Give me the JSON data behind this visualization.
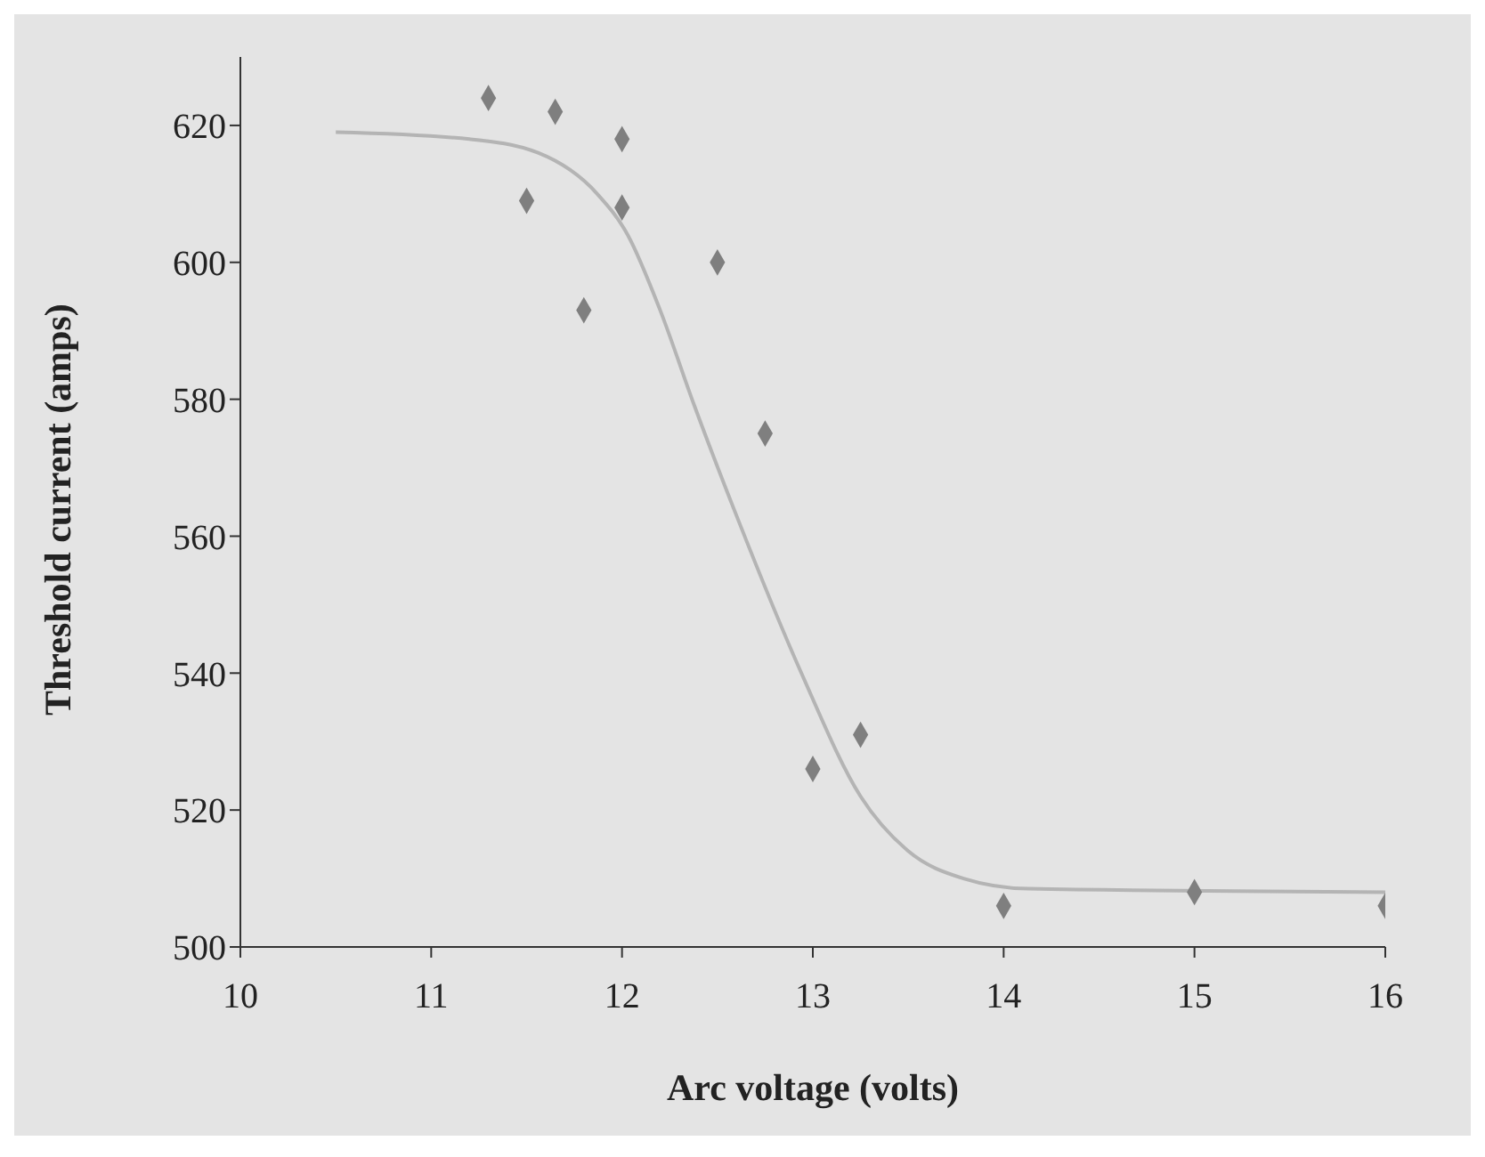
{
  "chart_data": {
    "type": "scatter",
    "xlabel": "Arc voltage (volts)",
    "ylabel": "Threshold current (amps)",
    "xlim": [
      10,
      16
    ],
    "ylim": [
      500,
      630
    ],
    "xticks": [
      10,
      11,
      12,
      13,
      14,
      15,
      16
    ],
    "yticks": [
      500,
      520,
      540,
      560,
      580,
      600,
      620
    ],
    "series": [
      {
        "marker": "diamond",
        "color": "#7f7f7f",
        "x": [
          11.3,
          11.65,
          12.0,
          11.5,
          12.0,
          12.5,
          11.8,
          12.75,
          13.25,
          13.0,
          14.0,
          15.0,
          16.0
        ],
        "values": [
          624,
          622,
          618,
          609,
          608,
          600,
          593,
          575,
          531,
          526,
          506,
          508,
          506
        ]
      },
      {
        "type": "line",
        "color": "#b4b4b4",
        "x": [
          10.5,
          11.2,
          11.56,
          11.87,
          12.03,
          12.2,
          12.38,
          12.6,
          12.94,
          13.25,
          13.5,
          13.79,
          14.13,
          16.0
        ],
        "values": [
          619,
          618,
          616,
          610,
          604,
          593,
          579,
          563,
          540,
          522,
          514,
          510,
          508.5,
          508
        ]
      }
    ]
  }
}
